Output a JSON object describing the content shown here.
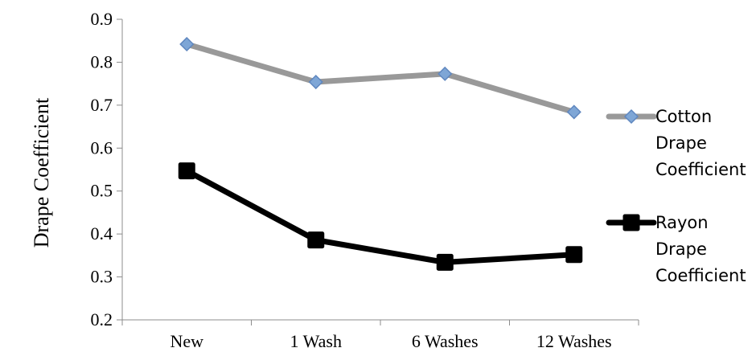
{
  "chart_data": {
    "type": "line",
    "title": "",
    "xlabel": "",
    "ylabel": "Drape Coefficient",
    "categories": [
      "New",
      "1 Wash",
      "6 Washes",
      "12 Washes"
    ],
    "ylim": [
      0.2,
      0.9
    ],
    "yticks": [
      "0.2",
      "0.3",
      "0.4",
      "0.5",
      "0.6",
      "0.7",
      "0.8",
      "0.9"
    ],
    "grid": false,
    "legend_position": "right",
    "series": [
      {
        "name": "Cotton Drape Coefficient",
        "legend_lines": [
          "Cotton",
          "Drape",
          "Coefficient"
        ],
        "values": [
          0.842,
          0.754,
          0.773,
          0.684
        ],
        "color": "#999999",
        "marker": "diamond",
        "marker_color": "#7ea6d6"
      },
      {
        "name": "Rayon Drape Coefficient",
        "legend_lines": [
          "Rayon",
          "Drape",
          "Coefficient"
        ],
        "values": [
          0.547,
          0.386,
          0.334,
          0.352
        ],
        "color": "#000000",
        "marker": "square",
        "marker_color": "#000000"
      }
    ]
  }
}
